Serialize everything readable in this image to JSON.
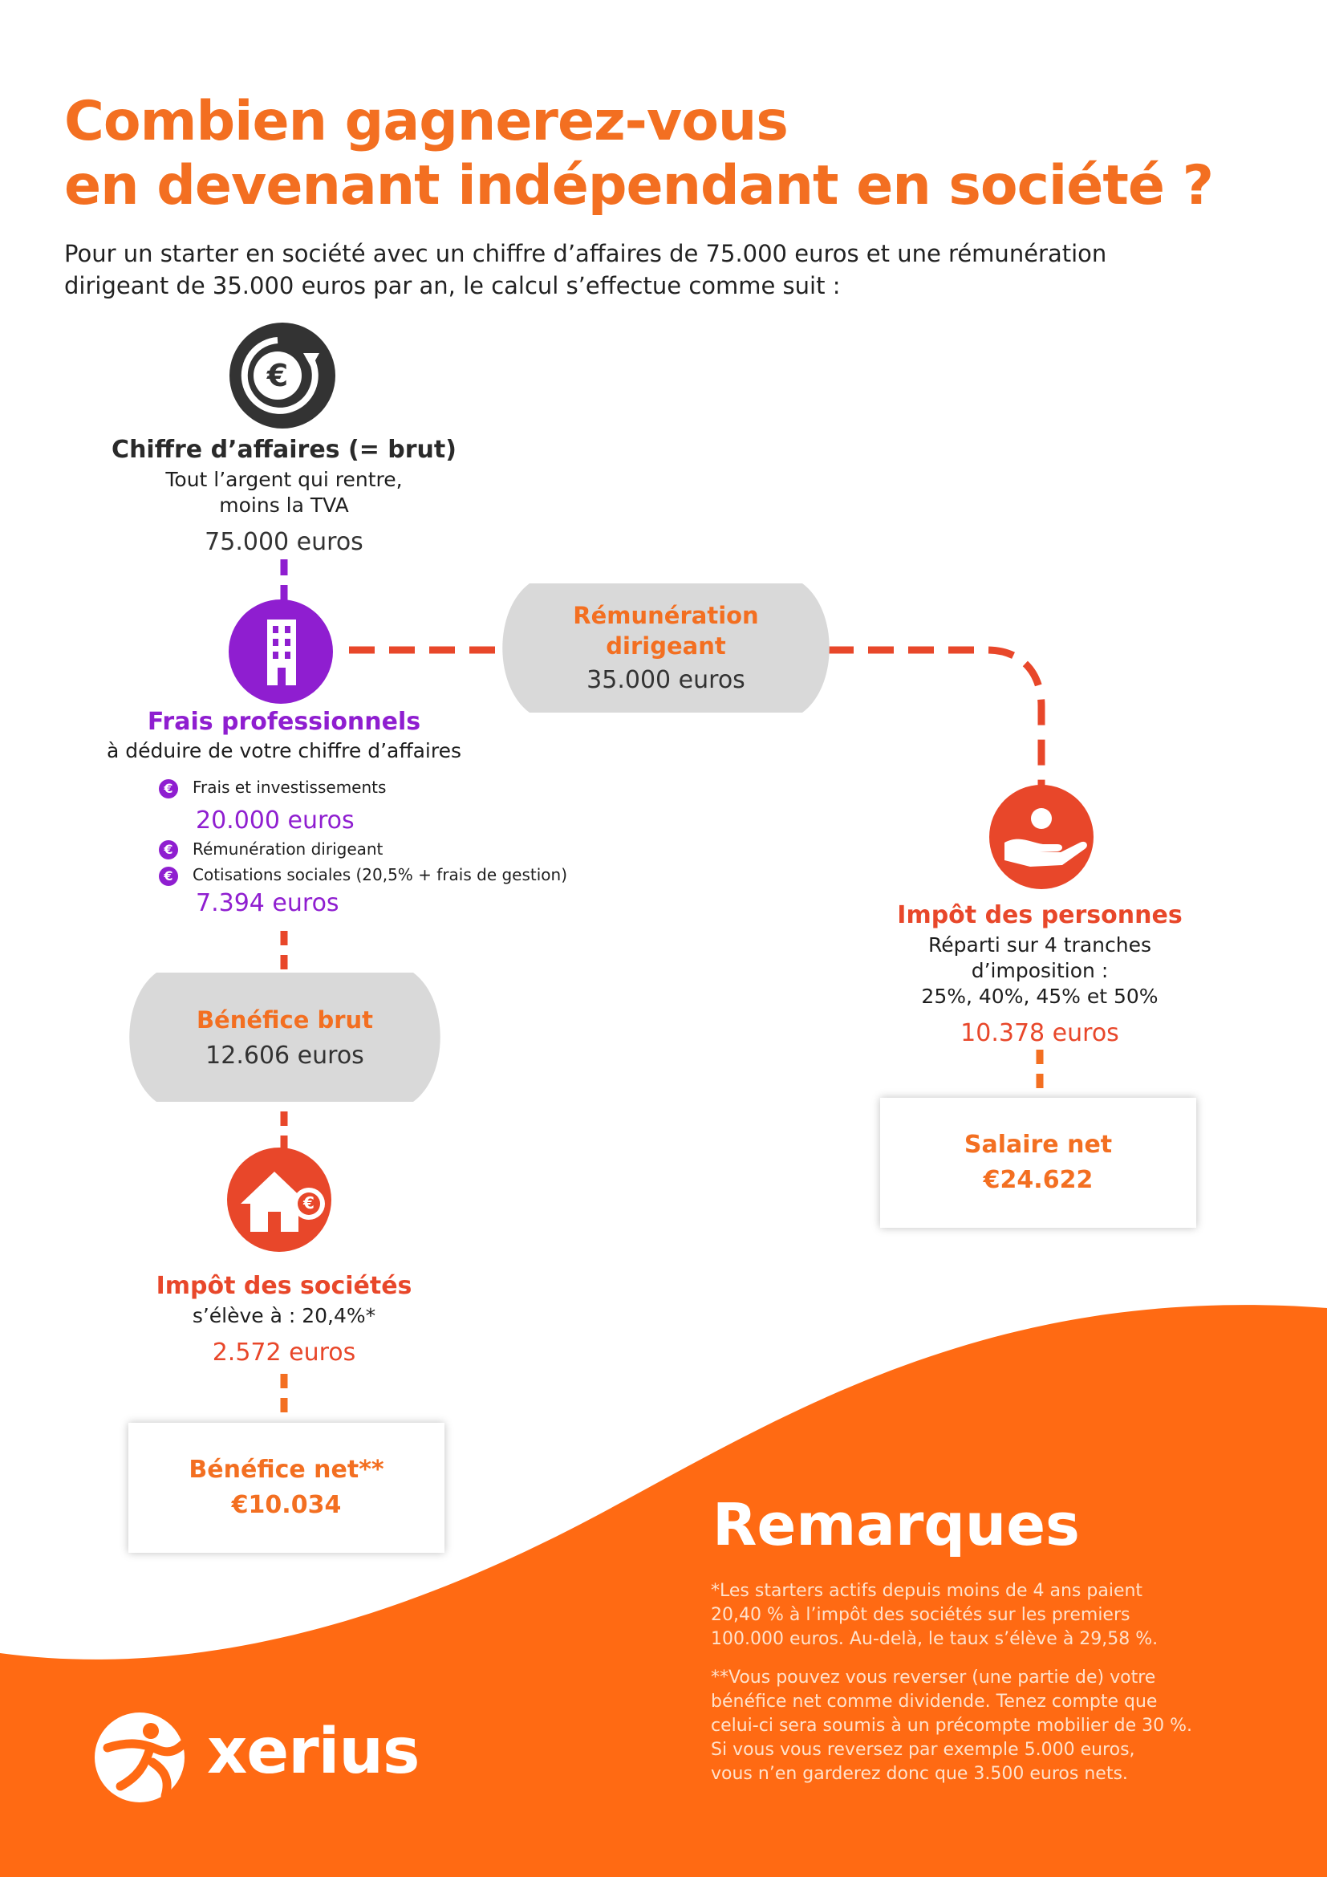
{
  "title": {
    "line1": "Combien gagnerez-vous",
    "line2": "en devenant indépendant en société ?"
  },
  "intro": {
    "line1": "Pour un starter en société avec un chiffre d’affaires de 75.000 euros et une rémunération",
    "line2": "dirigeant de 35.000 euros par an, le calcul s’effectue comme suit :"
  },
  "chiffre": {
    "title": "Chiffre d’affaires (= brut)",
    "desc1": "Tout l’argent qui rentre,",
    "desc2": "moins la TVA",
    "value": "75.000 euros",
    "icon_symbol": "€"
  },
  "frais": {
    "title": "Frais professionnels",
    "desc": "à déduire de votre chiffre d’affaires",
    "bullet_symbol": "€",
    "item1": "Frais et investissements",
    "value1": "20.000 euros",
    "item2": "Rémunération dirigeant",
    "item3": "Cotisations sociales (20,5% + frais de gestion)",
    "value2": "7.394 euros"
  },
  "remuneration": {
    "title1": "Rémunération",
    "title2": "dirigeant",
    "value": "35.000 euros"
  },
  "benefice_brut": {
    "title": "Bénéfice brut",
    "value": "12.606 euros"
  },
  "impot_societes": {
    "title": "Impôt des sociétés",
    "desc": "s’élève à : 20,4%*",
    "value": "2.572 euros",
    "icon_symbol": "€"
  },
  "benefice_net": {
    "title": "Bénéfice net**",
    "value": "€10.034"
  },
  "impot_personnes": {
    "title": "Impôt des personnes",
    "desc1": "Réparti sur 4 tranches",
    "desc2": "d’imposition :",
    "desc3": "25%, 40%, 45% et 50%",
    "value": "10.378 euros"
  },
  "salaire_net": {
    "title": "Salaire net",
    "value": "€24.622"
  },
  "remarques": {
    "title": "Remarques",
    "note1": [
      "*Les starters actifs depuis moins de 4 ans paient",
      "20,40 % à l’impôt des sociétés sur les premiers",
      "100.000 euros. Au-delà, le taux s’élève à 29,58 %."
    ],
    "note2": [
      "**Vous pouvez vous reverser (une partie de) votre",
      "bénéfice net comme dividende. Tenez compte que",
      "celui-ci sera soumis à un précompte mobilier de 30 %.",
      "Si vous vous reversez par exemple 5.000 euros,",
      "vous n’en garderez donc que 3.500 euros nets."
    ]
  },
  "logo": {
    "name": "xerius"
  },
  "colors": {
    "orange": "#f36f21",
    "red": "#e8472a",
    "purple": "#8f1ed0",
    "dark": "#333333",
    "pill_grey": "#d9d9d9",
    "footer_orange": "#ff6a13"
  }
}
